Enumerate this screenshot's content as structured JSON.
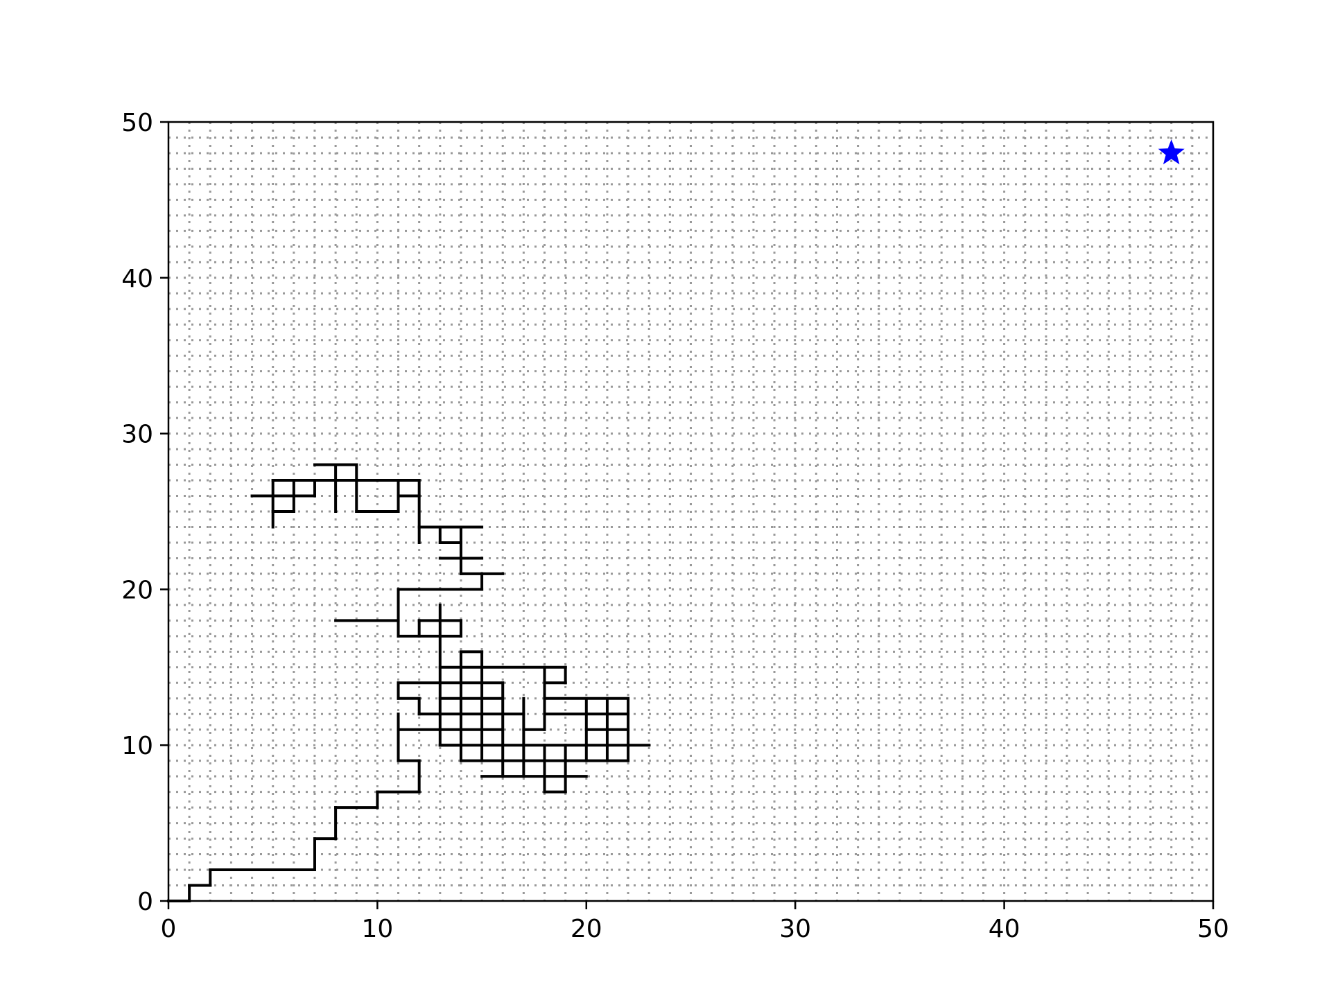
{
  "chart_data": {
    "type": "line",
    "title": "",
    "xlabel": "",
    "ylabel": "",
    "xlim": [
      0,
      50
    ],
    "ylim": [
      0,
      50
    ],
    "xticks": [
      0,
      10,
      20,
      30,
      40,
      50
    ],
    "yticks": [
      0,
      10,
      20,
      30,
      40,
      50
    ],
    "x_tick_labels": [
      "0",
      "10",
      "20",
      "30",
      "40",
      "50"
    ],
    "y_tick_labels": [
      "0",
      "10",
      "20",
      "30",
      "40",
      "50"
    ],
    "grid": {
      "on": true,
      "style": "dotted",
      "spacing": 1,
      "color": "#999999"
    },
    "legend": "none",
    "colors": {
      "path": "#000000",
      "goal": "#0000ff"
    },
    "goal_marker": {
      "x": 48,
      "y": 48,
      "symbol": "star"
    },
    "segments": [
      [
        0,
        0,
        1,
        0
      ],
      [
        1,
        0,
        1,
        1
      ],
      [
        1,
        1,
        2,
        1
      ],
      [
        2,
        1,
        2,
        2
      ],
      [
        2,
        2,
        7,
        2
      ],
      [
        7,
        2,
        7,
        4
      ],
      [
        7,
        4,
        8,
        4
      ],
      [
        8,
        4,
        8,
        6
      ],
      [
        8,
        6,
        10,
        6
      ],
      [
        10,
        6,
        10,
        7
      ],
      [
        10,
        7,
        12,
        7
      ],
      [
        12,
        7,
        12,
        9
      ],
      [
        12,
        9,
        11,
        9
      ],
      [
        11,
        9,
        11,
        12
      ],
      [
        11,
        11,
        13,
        11
      ],
      [
        13,
        10,
        13,
        19
      ],
      [
        12,
        18,
        12,
        17
      ],
      [
        12,
        18,
        14,
        18
      ],
      [
        14,
        18,
        14,
        17
      ],
      [
        11,
        17,
        14,
        17
      ],
      [
        11,
        17,
        11,
        20
      ],
      [
        11,
        20,
        15,
        20
      ],
      [
        15,
        20,
        15,
        21
      ],
      [
        8,
        18,
        11,
        18
      ],
      [
        14,
        21,
        16,
        21
      ],
      [
        14,
        21,
        14,
        24
      ],
      [
        13,
        22,
        15,
        22
      ],
      [
        13,
        23,
        14,
        23
      ],
      [
        13,
        23,
        13,
        24
      ],
      [
        12,
        24,
        15,
        24
      ],
      [
        12,
        23,
        12,
        27
      ],
      [
        11,
        26,
        12,
        26
      ],
      [
        11,
        25,
        11,
        27
      ],
      [
        9,
        25,
        11,
        25
      ],
      [
        9,
        25,
        9,
        28
      ],
      [
        7,
        28,
        9,
        28
      ],
      [
        8,
        25,
        8,
        28
      ],
      [
        7,
        27,
        12,
        27
      ],
      [
        7,
        26,
        7,
        27
      ],
      [
        4,
        26,
        7,
        26
      ],
      [
        5,
        27,
        7,
        27
      ],
      [
        5,
        24,
        5,
        27
      ],
      [
        5,
        25,
        6,
        25
      ],
      [
        6,
        25,
        6,
        27
      ],
      [
        13,
        10,
        22,
        10
      ],
      [
        22,
        10,
        23,
        10
      ],
      [
        14,
        9,
        22,
        9
      ],
      [
        15,
        8,
        20,
        8
      ],
      [
        18,
        7,
        19,
        7
      ],
      [
        18,
        7,
        18,
        10
      ],
      [
        19,
        7,
        19,
        10
      ],
      [
        17,
        8,
        17,
        13
      ],
      [
        17,
        11,
        18,
        11
      ],
      [
        18,
        11,
        18,
        15
      ],
      [
        20,
        9,
        20,
        13
      ],
      [
        21,
        9,
        21,
        13
      ],
      [
        22,
        9,
        22,
        13
      ],
      [
        18,
        13,
        22,
        13
      ],
      [
        18,
        12,
        22,
        12
      ],
      [
        20,
        11,
        22,
        11
      ],
      [
        14,
        9,
        14,
        16
      ],
      [
        15,
        9,
        15,
        16
      ],
      [
        16,
        8,
        16,
        14
      ],
      [
        14,
        16,
        15,
        16
      ],
      [
        13,
        15,
        19,
        15
      ],
      [
        19,
        14,
        19,
        15
      ],
      [
        18,
        14,
        19,
        14
      ],
      [
        11,
        14,
        16,
        14
      ],
      [
        11,
        13,
        11,
        14
      ],
      [
        11,
        13,
        12,
        13
      ],
      [
        12,
        12,
        12,
        13
      ],
      [
        12,
        12,
        13,
        12
      ],
      [
        13,
        13,
        16,
        13
      ],
      [
        13,
        12,
        17,
        12
      ],
      [
        13,
        11,
        16,
        11
      ],
      [
        13,
        10,
        14,
        10
      ]
    ]
  }
}
